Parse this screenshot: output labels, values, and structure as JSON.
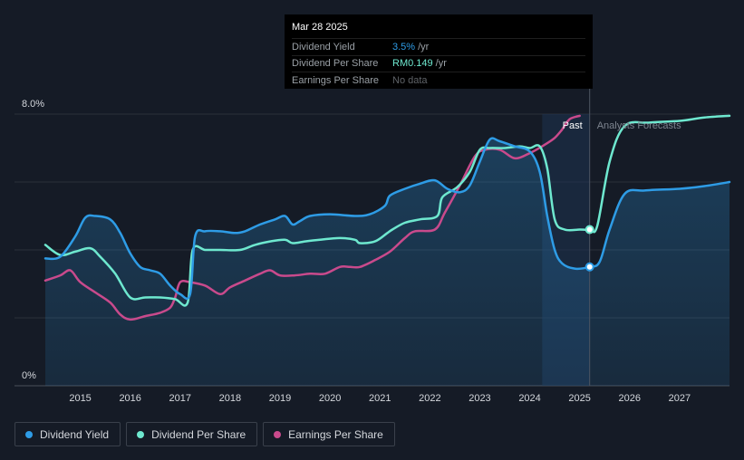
{
  "tooltip": {
    "date": "Mar 28 2025",
    "rows": [
      {
        "label": "Dividend Yield",
        "value": "3.5%",
        "unit": "/yr"
      },
      {
        "label": "Dividend Per Share",
        "value": "RM0.149",
        "unit": "/yr"
      },
      {
        "label": "Earnings Per Share",
        "value": "No data",
        "unit": ""
      }
    ]
  },
  "legend": [
    {
      "label": "Dividend Yield",
      "color": "#2e9ce6"
    },
    {
      "label": "Dividend Per Share",
      "color": "#6ee8cf"
    },
    {
      "label": "Earnings Per Share",
      "color": "#c94a8c"
    }
  ],
  "chart_data": {
    "type": "line",
    "y_axis": {
      "min_label": "0%",
      "max_label": "8.0%",
      "ylim": [
        0,
        8
      ]
    },
    "x_ticks": [
      "2015",
      "2016",
      "2017",
      "2018",
      "2019",
      "2020",
      "2021",
      "2022",
      "2023",
      "2024",
      "2025",
      "2026",
      "2027"
    ],
    "xlim": [
      2014.3,
      2028.0
    ],
    "region_labels": {
      "past": "Past",
      "forecast": "Analysts Forecasts"
    },
    "past_band": [
      2024.25,
      2025.2
    ],
    "cursor_x": 2025.2,
    "grid": true,
    "series": [
      {
        "name": "Dividend Yield",
        "color": "#2e9ce6",
        "filled": true,
        "points": [
          [
            2014.3,
            3.75
          ],
          [
            2014.6,
            3.8
          ],
          [
            2014.9,
            4.4
          ],
          [
            2015.1,
            4.95
          ],
          [
            2015.3,
            5.0
          ],
          [
            2015.6,
            4.9
          ],
          [
            2015.8,
            4.5
          ],
          [
            2016.0,
            3.9
          ],
          [
            2016.2,
            3.5
          ],
          [
            2016.4,
            3.4
          ],
          [
            2016.6,
            3.3
          ],
          [
            2016.8,
            2.95
          ],
          [
            2017.0,
            2.7
          ],
          [
            2017.2,
            2.7
          ],
          [
            2017.3,
            4.4
          ],
          [
            2017.5,
            4.55
          ],
          [
            2017.8,
            4.55
          ],
          [
            2018.1,
            4.5
          ],
          [
            2018.3,
            4.55
          ],
          [
            2018.6,
            4.75
          ],
          [
            2018.9,
            4.9
          ],
          [
            2019.1,
            5.0
          ],
          [
            2019.25,
            4.75
          ],
          [
            2019.4,
            4.85
          ],
          [
            2019.6,
            5.0
          ],
          [
            2020.0,
            5.05
          ],
          [
            2020.5,
            5.0
          ],
          [
            2020.8,
            5.05
          ],
          [
            2021.1,
            5.3
          ],
          [
            2021.2,
            5.6
          ],
          [
            2021.5,
            5.8
          ],
          [
            2021.8,
            5.95
          ],
          [
            2022.1,
            6.05
          ],
          [
            2022.35,
            5.8
          ],
          [
            2022.6,
            5.7
          ],
          [
            2022.8,
            5.9
          ],
          [
            2023.0,
            6.6
          ],
          [
            2023.2,
            7.25
          ],
          [
            2023.4,
            7.2
          ],
          [
            2023.7,
            7.05
          ],
          [
            2024.0,
            6.9
          ],
          [
            2024.2,
            6.3
          ],
          [
            2024.35,
            5.0
          ],
          [
            2024.5,
            4.0
          ],
          [
            2024.65,
            3.6
          ],
          [
            2024.9,
            3.45
          ],
          [
            2025.2,
            3.5
          ],
          [
            2025.4,
            3.65
          ],
          [
            2025.6,
            4.6
          ],
          [
            2025.9,
            5.65
          ],
          [
            2026.3,
            5.75
          ],
          [
            2027.0,
            5.8
          ],
          [
            2027.5,
            5.88
          ],
          [
            2028.0,
            6.0
          ]
        ]
      },
      {
        "name": "Dividend Per Share",
        "color": "#6ee8cf",
        "filled": false,
        "points": [
          [
            2014.3,
            4.15
          ],
          [
            2014.6,
            3.85
          ],
          [
            2014.9,
            3.95
          ],
          [
            2015.2,
            4.05
          ],
          [
            2015.4,
            3.8
          ],
          [
            2015.7,
            3.3
          ],
          [
            2016.0,
            2.6
          ],
          [
            2016.3,
            2.6
          ],
          [
            2016.6,
            2.6
          ],
          [
            2016.9,
            2.55
          ],
          [
            2017.15,
            2.45
          ],
          [
            2017.25,
            4.0
          ],
          [
            2017.5,
            4.0
          ],
          [
            2017.8,
            4.0
          ],
          [
            2018.2,
            4.0
          ],
          [
            2018.5,
            4.15
          ],
          [
            2018.8,
            4.25
          ],
          [
            2019.1,
            4.3
          ],
          [
            2019.25,
            4.2
          ],
          [
            2019.5,
            4.25
          ],
          [
            2019.8,
            4.3
          ],
          [
            2020.2,
            4.35
          ],
          [
            2020.5,
            4.3
          ],
          [
            2020.6,
            4.2
          ],
          [
            2020.9,
            4.25
          ],
          [
            2021.15,
            4.5
          ],
          [
            2021.25,
            4.6
          ],
          [
            2021.5,
            4.8
          ],
          [
            2021.8,
            4.9
          ],
          [
            2022.15,
            5.0
          ],
          [
            2022.25,
            5.55
          ],
          [
            2022.55,
            5.85
          ],
          [
            2022.8,
            6.3
          ],
          [
            2023.0,
            6.95
          ],
          [
            2023.2,
            7.0
          ],
          [
            2023.5,
            7.0
          ],
          [
            2023.8,
            7.05
          ],
          [
            2024.0,
            7.0
          ],
          [
            2024.2,
            7.05
          ],
          [
            2024.35,
            6.4
          ],
          [
            2024.5,
            4.9
          ],
          [
            2024.7,
            4.6
          ],
          [
            2025.0,
            4.6
          ],
          [
            2025.2,
            4.6
          ],
          [
            2025.35,
            4.7
          ],
          [
            2025.6,
            6.6
          ],
          [
            2025.9,
            7.65
          ],
          [
            2026.4,
            7.75
          ],
          [
            2027.0,
            7.8
          ],
          [
            2027.5,
            7.9
          ],
          [
            2028.0,
            7.95
          ]
        ]
      },
      {
        "name": "Earnings Per Share",
        "color": "#c94a8c",
        "filled": false,
        "points": [
          [
            2014.3,
            3.1
          ],
          [
            2014.6,
            3.25
          ],
          [
            2014.8,
            3.4
          ],
          [
            2015.0,
            3.05
          ],
          [
            2015.3,
            2.75
          ],
          [
            2015.6,
            2.45
          ],
          [
            2015.8,
            2.1
          ],
          [
            2016.0,
            1.95
          ],
          [
            2016.3,
            2.05
          ],
          [
            2016.6,
            2.15
          ],
          [
            2016.8,
            2.3
          ],
          [
            2016.9,
            2.6
          ],
          [
            2017.0,
            3.05
          ],
          [
            2017.2,
            3.05
          ],
          [
            2017.5,
            2.95
          ],
          [
            2017.8,
            2.7
          ],
          [
            2018.0,
            2.9
          ],
          [
            2018.3,
            3.1
          ],
          [
            2018.6,
            3.3
          ],
          [
            2018.8,
            3.4
          ],
          [
            2019.0,
            3.25
          ],
          [
            2019.3,
            3.25
          ],
          [
            2019.6,
            3.3
          ],
          [
            2019.9,
            3.3
          ],
          [
            2020.2,
            3.5
          ],
          [
            2020.4,
            3.5
          ],
          [
            2020.6,
            3.5
          ],
          [
            2020.9,
            3.7
          ],
          [
            2021.2,
            3.95
          ],
          [
            2021.5,
            4.35
          ],
          [
            2021.7,
            4.55
          ],
          [
            2022.1,
            4.6
          ],
          [
            2022.3,
            5.1
          ],
          [
            2022.6,
            5.9
          ],
          [
            2022.9,
            6.75
          ],
          [
            2023.1,
            6.95
          ],
          [
            2023.4,
            6.95
          ],
          [
            2023.7,
            6.7
          ],
          [
            2024.0,
            6.85
          ],
          [
            2024.3,
            7.1
          ],
          [
            2024.5,
            7.3
          ],
          [
            2024.65,
            7.55
          ],
          [
            2024.8,
            7.85
          ],
          [
            2025.0,
            7.95
          ]
        ]
      }
    ]
  }
}
